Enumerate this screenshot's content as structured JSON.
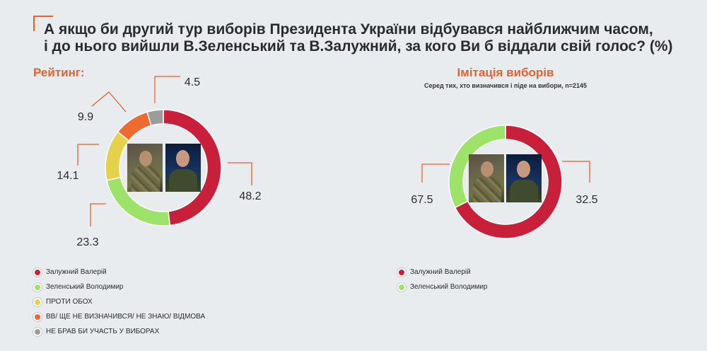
{
  "title": {
    "line1": "А якщо би другий тур виборів Президента України відбувався найближчим часом,",
    "line2": "і до нього вийшли В.Зеленський та В.Залужний, за кого Ви б віддали свій голос? (%)"
  },
  "left": {
    "section_label": "Рейтинг:",
    "legend": [
      {
        "label": "Залужний Валерій",
        "color": "#c8203a"
      },
      {
        "label": "Зеленський Володимир",
        "color": "#9de36a"
      },
      {
        "label": "ПРОТИ ОБОХ",
        "color": "#e5d24a"
      },
      {
        "label": "ВВ/ ЩЕ НЕ ВИЗНАЧИВСЯ/ НЕ ЗНАЮ/ ВІДМОВА",
        "color": "#ee6a2f"
      },
      {
        "label": "НЕ БРАВ БИ УЧАСТЬ У ВИБОРАХ",
        "color": "#9c9c9c"
      }
    ]
  },
  "right": {
    "section_label": "Імітація виборів",
    "subtitle": "Серед тих, хто визначився і піде на вибори, n=2145",
    "legend": [
      {
        "label": "Залужний Валерій",
        "color": "#c8203a"
      },
      {
        "label": "Зеленський Володимир",
        "color": "#9de36a"
      }
    ]
  },
  "chart_data": [
    {
      "type": "pie",
      "title": "Рейтинг:",
      "categories": [
        "Залужний Валерій",
        "Зеленський Володимир",
        "ПРОТИ ОБОХ",
        "ВВ/ ЩЕ НЕ ВИЗНАЧИВСЯ/ НЕ ЗНАЮ/ ВІДМОВА",
        "НЕ БРАВ БИ УЧАСТЬ У ВИБОРАХ"
      ],
      "values": [
        48.2,
        23.3,
        14.1,
        9.9,
        4.5
      ],
      "labels": [
        "48.2",
        "23.3",
        "14.1",
        "9.9",
        "4.5"
      ],
      "colors": [
        "#c8203a",
        "#9de36a",
        "#e5d24a",
        "#ee6a2f",
        "#9c9c9c"
      ],
      "donut": true,
      "legend_position": "bottom-left"
    },
    {
      "type": "pie",
      "title": "Імітація виборів",
      "subtitle": "Серед тих, хто визначився і піде на вибори, n=2145",
      "categories": [
        "Залужний Валерій",
        "Зеленський Володимир"
      ],
      "values": [
        67.5,
        32.5
      ],
      "labels": [
        "67.5",
        "32.5"
      ],
      "colors": [
        "#c8203a",
        "#9de36a"
      ],
      "donut": true,
      "legend_position": "bottom-left"
    }
  ]
}
